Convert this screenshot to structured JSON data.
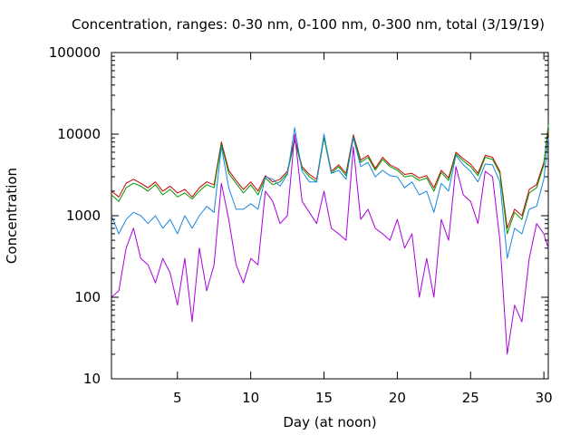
{
  "chart_data": {
    "type": "line",
    "title": "Concentration, ranges: 0-30 nm, 0-100 nm, 0-300 nm, total (3/19/19)",
    "xlabel": "Day (at noon)",
    "ylabel": "Concentration",
    "xlim": [
      0.5,
      30.3
    ],
    "ylim": [
      10,
      100000
    ],
    "yscale": "log",
    "grid": false,
    "legend": "none",
    "x_ticks": [
      5,
      10,
      15,
      20,
      25,
      30
    ],
    "x_tick_labels": [
      "5",
      "10",
      "15",
      "20",
      "25",
      "30"
    ],
    "y_ticks": [
      10,
      100,
      1000,
      10000,
      100000
    ],
    "y_tick_labels": [
      "10",
      "100",
      "1000",
      "10000",
      "100000"
    ],
    "series": [
      {
        "color": "#cc0000",
        "x": [
          0.5,
          1.0,
          1.5,
          2.0,
          2.5,
          3.0,
          3.5,
          4.0,
          4.5,
          5.0,
          5.5,
          6.0,
          6.5,
          7.0,
          7.5,
          8.0,
          8.5,
          9.0,
          9.5,
          10.0,
          10.5,
          11.0,
          11.5,
          12.0,
          12.5,
          13.0,
          13.5,
          14.0,
          14.5,
          15.0,
          15.5,
          16.0,
          16.5,
          17.0,
          17.5,
          18.0,
          18.5,
          19.0,
          19.5,
          20.0,
          20.5,
          21.0,
          21.5,
          22.0,
          22.5,
          23.0,
          23.5,
          24.0,
          24.5,
          25.0,
          25.5,
          26.0,
          26.5,
          27.0,
          27.5,
          28.0,
          28.5,
          29.0,
          29.5,
          30.0,
          30.3
        ],
        "values": [
          2000,
          1700,
          2500,
          2800,
          2500,
          2200,
          2600,
          2000,
          2300,
          1900,
          2100,
          1700,
          2200,
          2600,
          2400,
          8000,
          3600,
          2700,
          2100,
          2600,
          2000,
          3100,
          2600,
          2800,
          3500,
          9000,
          4000,
          3200,
          2800,
          9500,
          3500,
          4200,
          3300,
          9800,
          4800,
          5500,
          3800,
          5200,
          4200,
          3800,
          3200,
          3300,
          2900,
          3100,
          2200,
          3600,
          2900,
          6000,
          5000,
          4300,
          3300,
          5500,
          5200,
          3500,
          700,
          1200,
          1000,
          2100,
          2400,
          4500,
          11000
        ]
      },
      {
        "color": "#009900",
        "x": [
          0.5,
          1.0,
          1.5,
          2.0,
          2.5,
          3.0,
          3.5,
          4.0,
          4.5,
          5.0,
          5.5,
          6.0,
          6.5,
          7.0,
          7.5,
          8.0,
          8.5,
          9.0,
          9.5,
          10.0,
          10.5,
          11.0,
          11.5,
          12.0,
          12.5,
          13.0,
          13.5,
          14.0,
          14.5,
          15.0,
          15.5,
          16.0,
          16.5,
          17.0,
          17.5,
          18.0,
          18.5,
          19.0,
          19.5,
          20.0,
          20.5,
          21.0,
          21.5,
          22.0,
          22.5,
          23.0,
          23.5,
          24.0,
          24.5,
          25.0,
          25.5,
          26.0,
          26.5,
          27.0,
          27.5,
          28.0,
          28.5,
          29.0,
          29.5,
          30.0,
          30.3
        ],
        "values": [
          1800,
          1500,
          2200,
          2500,
          2300,
          2000,
          2400,
          1800,
          2100,
          1700,
          1900,
          1600,
          2000,
          2400,
          2200,
          7500,
          3300,
          2500,
          1900,
          2400,
          1800,
          2900,
          2400,
          2600,
          3300,
          8500,
          3800,
          3000,
          2600,
          9000,
          3300,
          4000,
          3100,
          9300,
          4500,
          5200,
          3600,
          4900,
          4000,
          3600,
          3000,
          3100,
          2700,
          2900,
          2000,
          3400,
          2700,
          5700,
          4700,
          4000,
          3100,
          5200,
          4900,
          3300,
          600,
          1100,
          900,
          1900,
          2200,
          4200,
          13000
        ]
      },
      {
        "color": "#1a86e0",
        "x": [
          0.5,
          1.0,
          1.5,
          2.0,
          2.5,
          3.0,
          3.5,
          4.0,
          4.5,
          5.0,
          5.5,
          6.0,
          6.5,
          7.0,
          7.5,
          8.0,
          8.5,
          9.0,
          9.5,
          10.0,
          10.5,
          11.0,
          11.5,
          12.0,
          12.5,
          13.0,
          13.5,
          14.0,
          14.5,
          15.0,
          15.5,
          16.0,
          16.5,
          17.0,
          17.5,
          18.0,
          18.5,
          19.0,
          19.5,
          20.0,
          20.5,
          21.0,
          21.5,
          22.0,
          22.5,
          23.0,
          23.5,
          24.0,
          24.5,
          25.0,
          25.5,
          26.0,
          26.5,
          27.0,
          27.5,
          28.0,
          28.5,
          29.0,
          29.5,
          30.0,
          30.3
        ],
        "values": [
          1000,
          600,
          900,
          1100,
          1000,
          800,
          1000,
          700,
          900,
          600,
          1000,
          700,
          1000,
          1300,
          1100,
          7000,
          2200,
          1200,
          1200,
          1400,
          1200,
          3000,
          2800,
          2300,
          3200,
          12000,
          3500,
          2600,
          2600,
          10000,
          3300,
          3600,
          2800,
          9000,
          4000,
          4500,
          3000,
          3600,
          3100,
          3000,
          2200,
          2600,
          1800,
          2000,
          1100,
          2500,
          2000,
          5500,
          4200,
          3500,
          2600,
          4300,
          4200,
          2600,
          300,
          700,
          600,
          1200,
          1300,
          2800,
          9000
        ]
      },
      {
        "color": "#aa00dd",
        "x": [
          0.5,
          1.0,
          1.5,
          2.0,
          2.5,
          3.0,
          3.5,
          4.0,
          4.5,
          5.0,
          5.5,
          6.0,
          6.5,
          7.0,
          7.5,
          8.0,
          8.5,
          9.0,
          9.5,
          10.0,
          10.5,
          11.0,
          11.5,
          12.0,
          12.5,
          13.0,
          13.5,
          14.0,
          14.5,
          15.0,
          15.5,
          16.0,
          16.5,
          17.0,
          17.5,
          18.0,
          18.5,
          19.0,
          19.5,
          20.0,
          20.5,
          21.0,
          21.5,
          22.0,
          22.5,
          23.0,
          23.5,
          24.0,
          24.5,
          25.0,
          25.5,
          26.0,
          26.5,
          27.0,
          27.5,
          28.0,
          28.5,
          29.0,
          29.5,
          30.0,
          30.3
        ],
        "values": [
          100,
          120,
          400,
          700,
          300,
          250,
          150,
          300,
          200,
          80,
          300,
          50,
          400,
          120,
          250,
          2500,
          900,
          250,
          150,
          300,
          250,
          2000,
          1500,
          800,
          1000,
          10000,
          1500,
          1100,
          800,
          2000,
          700,
          600,
          500,
          7000,
          900,
          1200,
          700,
          600,
          500,
          900,
          400,
          600,
          100,
          300,
          100,
          900,
          500,
          4000,
          1800,
          1500,
          800,
          3500,
          3000,
          500,
          20,
          80,
          50,
          300,
          800,
          600,
          400
        ]
      }
    ]
  }
}
